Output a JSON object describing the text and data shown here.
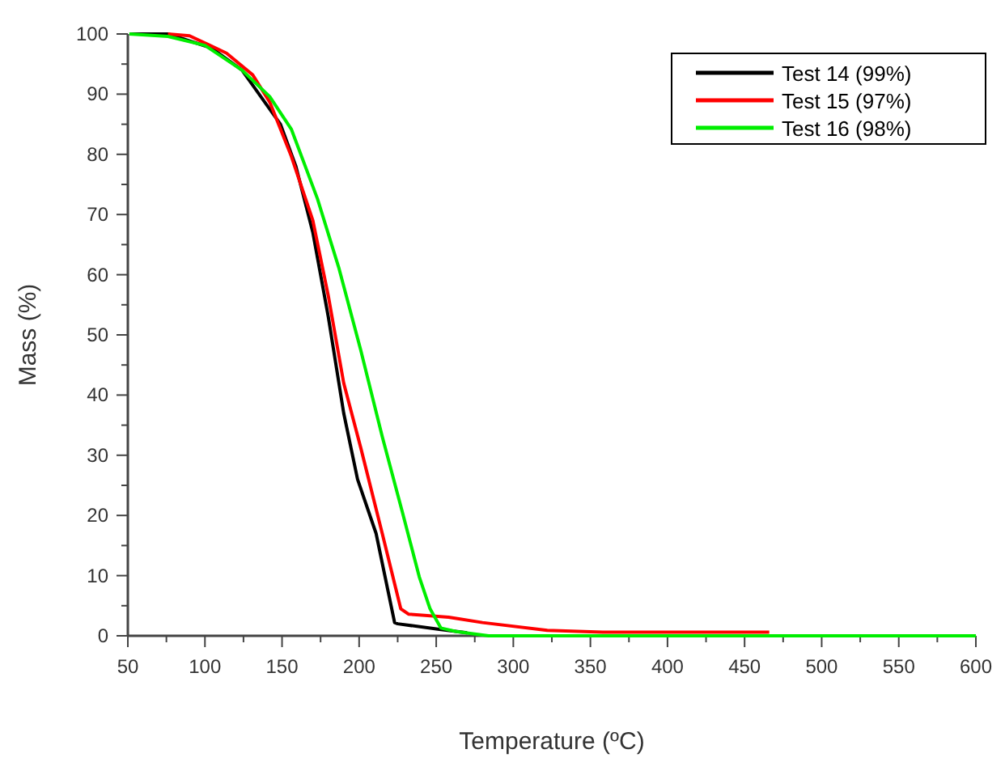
{
  "chart_data": {
    "type": "line",
    "xlabel": "Temperature (ºC)",
    "ylabel": "Mass (%)",
    "xlim": [
      50,
      600
    ],
    "ylim": [
      0,
      100
    ],
    "xticks": [
      50,
      {
        "value": 75,
        "label": null
      },
      100,
      {
        "value": 125,
        "label": null
      },
      150,
      {
        "value": 175,
        "label": null
      },
      200,
      {
        "value": 225,
        "label": null
      },
      250,
      {
        "value": 275,
        "label": null
      },
      300,
      {
        "value": 325,
        "label": null
      },
      350,
      {
        "value": 375,
        "label": null
      },
      400,
      {
        "value": 425,
        "label": null
      },
      450,
      {
        "value": 475,
        "label": null
      },
      500,
      {
        "value": 525,
        "label": null
      },
      550,
      {
        "value": 575,
        "label": null
      },
      600
    ],
    "yticks": [
      0,
      {
        "value": 5,
        "label": null
      },
      10,
      {
        "value": 15,
        "label": null
      },
      20,
      {
        "value": 25,
        "label": null
      },
      30,
      {
        "value": 35,
        "label": null
      },
      40,
      {
        "value": 45,
        "label": null
      },
      50,
      {
        "value": 55,
        "label": null
      },
      60,
      {
        "value": 65,
        "label": null
      },
      70,
      {
        "value": 75,
        "label": null
      },
      80,
      {
        "value": 85,
        "label": null
      },
      90,
      {
        "value": 95,
        "label": null
      },
      100
    ],
    "grid": false,
    "legend": "top right",
    "marker": "none",
    "line_style": "solid",
    "series": [
      {
        "name": "Test 14 (99%)",
        "color": "#000000",
        "x": [
          51,
          76,
          104,
          124,
          149,
          159,
          170,
          180,
          190,
          199,
          211,
          223,
          225,
          251,
          270
        ],
        "values": [
          100,
          100,
          97.7,
          94,
          85,
          78,
          67,
          53,
          37,
          26,
          17,
          2.2,
          2,
          1.1,
          0.5
        ]
      },
      {
        "name": "Test 15 (97%)",
        "color": "#ff0000",
        "x": [
          76,
          90,
          114,
          131,
          142,
          156,
          170,
          180,
          190,
          201,
          215,
          227,
          232,
          258,
          280,
          322,
          358,
          466
        ],
        "values": [
          100,
          99.7,
          96.8,
          93.2,
          88.7,
          79.7,
          69,
          56.5,
          42,
          31.3,
          17,
          4.5,
          3.6,
          3.1,
          2.2,
          0.9,
          0.6,
          0.6
        ]
      },
      {
        "name": "Test 16 (98%)",
        "color": "#00ee00",
        "x": [
          51,
          76,
          100,
          124,
          142,
          156,
          173,
          187,
          201,
          215,
          228,
          239,
          246,
          253,
          263,
          284,
          600
        ],
        "values": [
          100,
          99.6,
          98.1,
          94,
          89.6,
          84.2,
          72.6,
          61,
          47.5,
          33.1,
          20.6,
          9.8,
          4.5,
          1.3,
          0.7,
          0,
          0
        ]
      }
    ]
  }
}
